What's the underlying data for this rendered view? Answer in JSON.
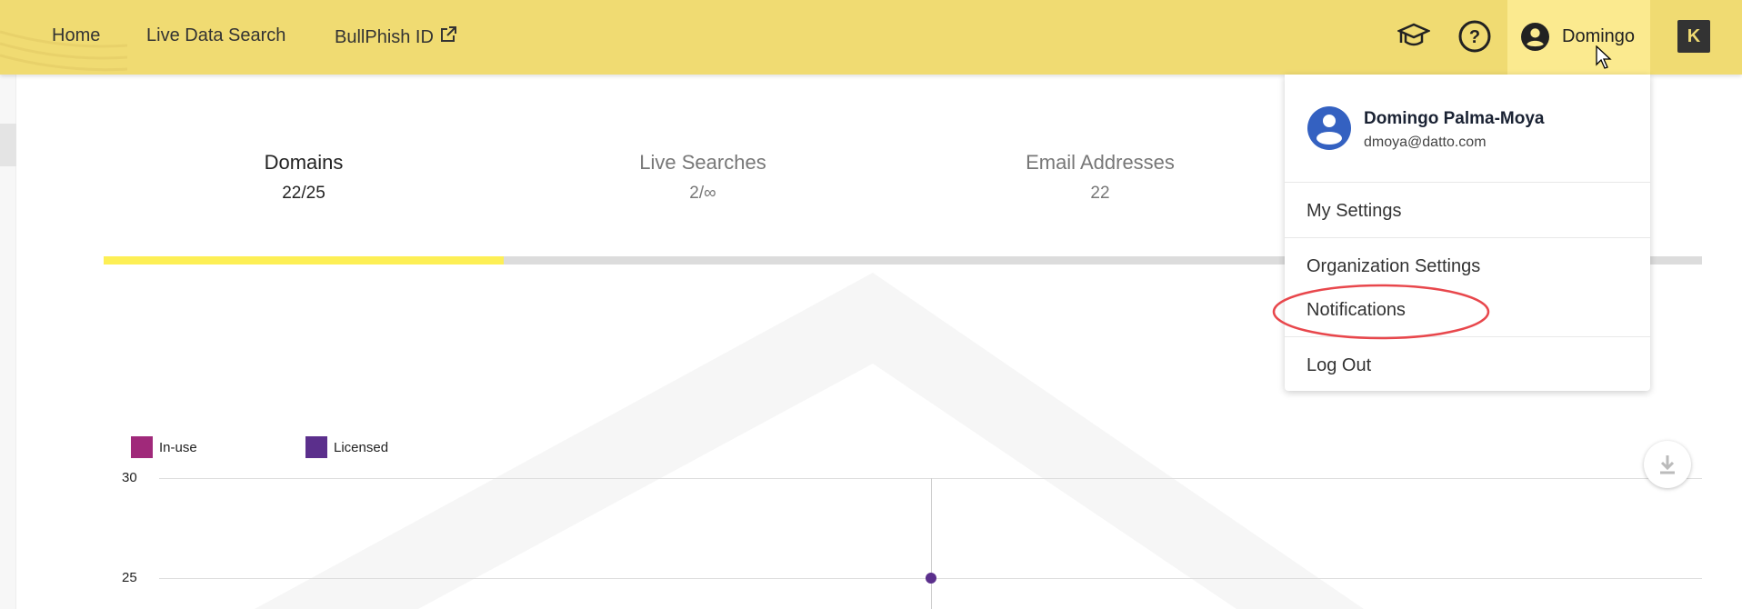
{
  "header": {
    "nav": [
      {
        "label": "Home"
      },
      {
        "label": "Live Data Search"
      },
      {
        "label": "BullPhish ID"
      }
    ],
    "user_label": "Domingo",
    "icons": [
      "graduation-cap-icon",
      "help-icon",
      "user-circle-icon",
      "kaseya-logo"
    ],
    "background_color": "#f0db72"
  },
  "stats": [
    {
      "title": "Domains",
      "value": "22/25",
      "active": true
    },
    {
      "title": "Live Searches",
      "value": "2/∞"
    },
    {
      "title": "Email Addresses",
      "value": "22"
    }
  ],
  "progress": {
    "fraction": 0.25,
    "fill_color": "#fdef55"
  },
  "user_menu": {
    "name": "Domingo Palma-Moya",
    "email": "dmoya@datto.com",
    "items": [
      {
        "label": "My Settings"
      },
      {
        "label": "Organization Settings"
      },
      {
        "label": "Notifications",
        "highlighted": true
      },
      {
        "label": "Log Out"
      }
    ]
  },
  "chart_data": {
    "type": "line",
    "legend": [
      {
        "name": "In-use",
        "color": "#a0297a"
      },
      {
        "name": "Licensed",
        "color": "#5b2f8c"
      }
    ],
    "legend_placement": "top-left",
    "y_ticks": [
      "30",
      "25"
    ],
    "series": [
      {
        "name": "Licensed",
        "values": [
          25
        ]
      }
    ],
    "grid": true
  }
}
